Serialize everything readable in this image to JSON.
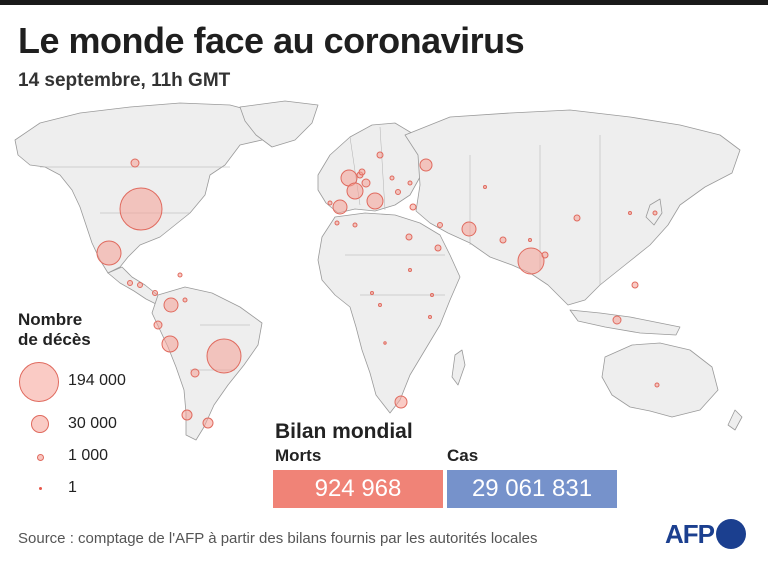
{
  "title": "Le monde face au coronavirus",
  "subtitle": "14 septembre, 11h GMT",
  "legend": {
    "title_line1": "Nombre",
    "title_line2": "de décès",
    "items": [
      {
        "label": "194 000",
        "value": 194000
      },
      {
        "label": "30 000",
        "value": 30000
      },
      {
        "label": "1 000",
        "value": 1000
      },
      {
        "label": "1",
        "value": 1
      }
    ]
  },
  "bilan": {
    "title": "Bilan mondial",
    "deaths_label": "Morts",
    "deaths_value": "924 968",
    "cases_label": "Cas",
    "cases_value": "29 061 831"
  },
  "source": "Source : comptage de l'AFP à partir des bilans fournis par les autorités locales",
  "logo": "AFP",
  "colors": {
    "land": "#eeeeee",
    "border": "#9a9a9a",
    "bubble_fill": "#f5a096",
    "bubble_stroke": "#e06a5e",
    "deaths_box": "#f08377",
    "cases_box": "#7692cb",
    "afp_blue": "#1b3f8f"
  }
}
